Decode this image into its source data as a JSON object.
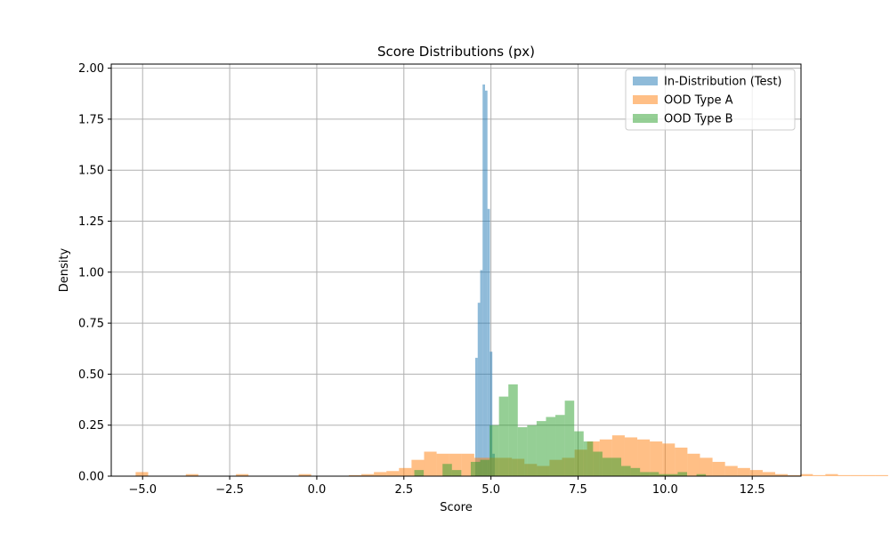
{
  "chart_data": {
    "type": "histogram",
    "title": "Score Distributions (px)",
    "xlabel": "Score",
    "ylabel": "Density",
    "xlim": [
      -5.9,
      13.9
    ],
    "ylim": [
      0,
      2.02
    ],
    "grid": true,
    "legend_position": "top-right",
    "x_ticks": [
      -5.0,
      -2.5,
      0.0,
      2.5,
      5.0,
      7.5,
      10.0,
      12.5
    ],
    "x_tick_labels": [
      "−5.0",
      "−2.5",
      "0.0",
      "2.5",
      "5.0",
      "7.5",
      "10.0",
      "12.5"
    ],
    "y_ticks": [
      0.0,
      0.25,
      0.5,
      0.75,
      1.0,
      1.25,
      1.5,
      1.75,
      2.0
    ],
    "y_tick_labels": [
      "0.00",
      "0.25",
      "0.50",
      "0.75",
      "1.00",
      "1.25",
      "1.50",
      "1.75",
      "2.00"
    ],
    "series": [
      {
        "name": "In-Distribution (Test)",
        "color": "#1f77b4",
        "alpha": 0.5,
        "bin_start": 4.55,
        "bin_width": 0.07,
        "values": [
          0.58,
          0.85,
          1.01,
          1.92,
          1.89,
          1.31,
          0.61,
          0.11
        ]
      },
      {
        "name": "OOD Type A",
        "color": "#ff7f0e",
        "alpha": 0.5,
        "bin_start": -5.2,
        "bin_width": 0.36,
        "values": [
          0.02,
          0.0,
          0.0,
          0.0,
          0.01,
          0.0,
          0.0,
          0.0,
          0.01,
          0.0,
          0.0,
          0.0,
          0.0,
          0.01,
          0.0,
          0.0,
          0.0,
          0.005,
          0.01,
          0.02,
          0.025,
          0.04,
          0.08,
          0.12,
          0.11,
          0.11,
          0.11,
          0.09,
          0.09,
          0.09,
          0.085,
          0.06,
          0.05,
          0.08,
          0.09,
          0.13,
          0.17,
          0.18,
          0.2,
          0.19,
          0.18,
          0.17,
          0.16,
          0.14,
          0.11,
          0.09,
          0.07,
          0.05,
          0.04,
          0.03,
          0.02,
          0.01,
          0.005,
          0.01,
          0.005,
          0.01,
          0.005,
          0.005,
          0.005,
          0.005,
          0.0
        ]
      },
      {
        "name": "OOD Type B",
        "color": "#2ca02c",
        "alpha": 0.5,
        "bin_start": 2.8,
        "bin_width": 0.27,
        "values": [
          0.03,
          0.0,
          0.0,
          0.06,
          0.03,
          0.0,
          0.07,
          0.08,
          0.25,
          0.39,
          0.45,
          0.24,
          0.25,
          0.27,
          0.29,
          0.3,
          0.37,
          0.22,
          0.17,
          0.12,
          0.09,
          0.09,
          0.05,
          0.04,
          0.02,
          0.02,
          0.01,
          0.01,
          0.02,
          0.0,
          0.01,
          0.0
        ]
      }
    ]
  }
}
